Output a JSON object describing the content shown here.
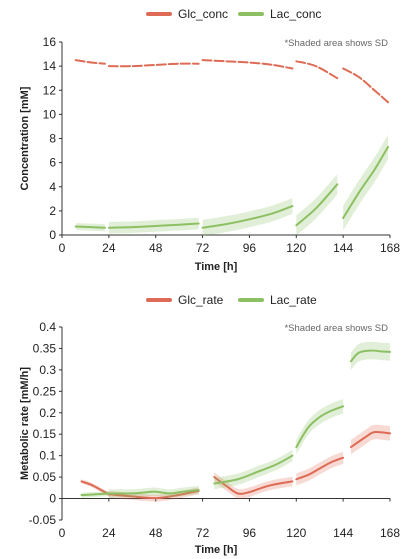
{
  "chart_data": [
    {
      "type": "line",
      "note": "*Shaded area shows SD",
      "xlabel": "Time [h]",
      "ylabel": "Concentration [mM]",
      "xlim": [
        0,
        168
      ],
      "ylim": [
        0,
        16
      ],
      "xticks": [
        0,
        24,
        48,
        72,
        96,
        120,
        144,
        168
      ],
      "yticks": [
        0,
        2,
        4,
        6,
        8,
        10,
        12,
        14,
        16
      ],
      "legend_position": "top-center",
      "series": [
        {
          "name": "Glc_conc",
          "color": "#de6b55",
          "dashed": true,
          "segments": [
            [
              [
                7,
                14.5
              ],
              [
                15,
                14.3
              ],
              [
                22,
                14.2
              ]
            ],
            [
              [
                24,
                14.0
              ],
              [
                36,
                14.0
              ],
              [
                48,
                14.1
              ],
              [
                60,
                14.2
              ],
              [
                70,
                14.2
              ]
            ],
            [
              [
                72,
                14.5
              ],
              [
                84,
                14.4
              ],
              [
                96,
                14.3
              ],
              [
                108,
                14.1
              ],
              [
                118,
                13.8
              ]
            ],
            [
              [
                120,
                14.4
              ],
              [
                130,
                14.0
              ],
              [
                141,
                13.0
              ]
            ],
            [
              [
                144,
                13.8
              ],
              [
                152,
                13.1
              ],
              [
                160,
                12.0
              ],
              [
                167,
                11.0
              ]
            ]
          ]
        },
        {
          "name": "Lac_conc",
          "color": "#8cc063",
          "dashed": false,
          "sd": 0.3,
          "segments": [
            [
              [
                7,
                0.7
              ],
              [
                15,
                0.65
              ],
              [
                22,
                0.6
              ]
            ],
            [
              [
                24,
                0.6
              ],
              [
                36,
                0.65
              ],
              [
                48,
                0.75
              ],
              [
                60,
                0.85
              ],
              [
                70,
                0.95
              ]
            ],
            [
              [
                72,
                0.6
              ],
              [
                84,
                0.9
              ],
              [
                96,
                1.3
              ],
              [
                108,
                1.8
              ],
              [
                118,
                2.4
              ]
            ],
            [
              [
                120,
                0.8
              ],
              [
                130,
                2.2
              ],
              [
                141,
                4.2
              ]
            ],
            [
              [
                144,
                1.4
              ],
              [
                152,
                3.5
              ],
              [
                160,
                5.4
              ],
              [
                167,
                7.3
              ]
            ]
          ]
        }
      ]
    },
    {
      "type": "line",
      "note": "*Shaded area shows SD",
      "xlabel": "Time [h]",
      "ylabel": "Metabolic rate [mM/h]",
      "xlim": [
        0,
        168
      ],
      "ylim": [
        -0.05,
        0.4
      ],
      "xticks": [
        0,
        24,
        48,
        72,
        96,
        120,
        144,
        168
      ],
      "yticks": [
        -0.05,
        0,
        0.05,
        0.1,
        0.15,
        0.2,
        0.25,
        0.3,
        0.35,
        0.4
      ],
      "legend_position": "top-center",
      "series": [
        {
          "name": "Glc_rate",
          "color": "#de6b55",
          "sd": 0.005,
          "segments": [
            [
              [
                10,
                0.04
              ],
              [
                15,
                0.032
              ],
              [
                20,
                0.02
              ],
              [
                24,
                0.01
              ]
            ],
            [
              [
                24,
                0.01
              ],
              [
                36,
                0.005
              ],
              [
                48,
                0.001
              ],
              [
                58,
                0.007
              ],
              [
                70,
                0.018
              ]
            ],
            [
              [
                78,
                0.05
              ],
              [
                84,
                0.03
              ],
              [
                90,
                0.012
              ],
              [
                96,
                0.015
              ],
              [
                106,
                0.03
              ],
              [
                118,
                0.04
              ]
            ],
            [
              [
                120,
                0.045
              ],
              [
                126,
                0.055
              ],
              [
                132,
                0.07
              ],
              [
                138,
                0.085
              ],
              [
                144,
                0.095
              ]
            ],
            [
              [
                148,
                0.12
              ],
              [
                156,
                0.145
              ],
              [
                160,
                0.155
              ],
              [
                168,
                0.152
              ]
            ]
          ]
        },
        {
          "name": "Lac_rate",
          "color": "#8cc063",
          "sd": 0.006,
          "segments": [
            [
              [
                10,
                0.008
              ],
              [
                18,
                0.01
              ],
              [
                24,
                0.012
              ]
            ],
            [
              [
                24,
                0.012
              ],
              [
                36,
                0.012
              ],
              [
                42,
                0.014
              ],
              [
                48,
                0.016
              ],
              [
                55,
                0.012
              ],
              [
                62,
                0.016
              ],
              [
                70,
                0.02
              ]
            ],
            [
              [
                78,
                0.035
              ],
              [
                90,
                0.045
              ],
              [
                100,
                0.062
              ],
              [
                110,
                0.08
              ],
              [
                118,
                0.1
              ]
            ],
            [
              [
                120,
                0.12
              ],
              [
                126,
                0.165
              ],
              [
                132,
                0.19
              ],
              [
                138,
                0.205
              ],
              [
                144,
                0.215
              ]
            ],
            [
              [
                148,
                0.32
              ],
              [
                152,
                0.34
              ],
              [
                158,
                0.345
              ],
              [
                164,
                0.343
              ],
              [
                168,
                0.342
              ]
            ]
          ]
        }
      ]
    }
  ]
}
